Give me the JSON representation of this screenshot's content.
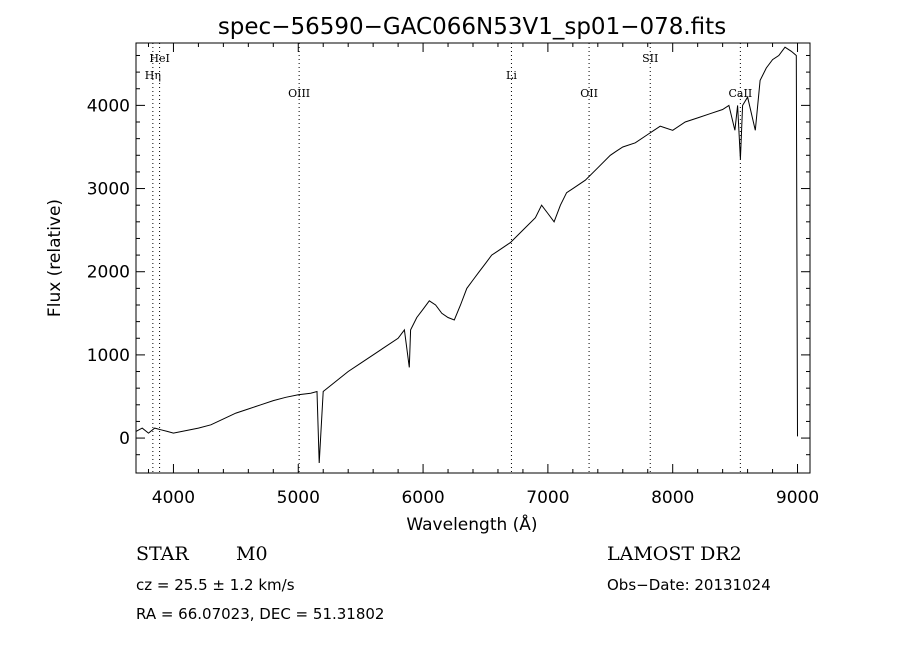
{
  "chart_data": {
    "type": "line",
    "title": "spec−56590−GAC066N53V1_sp01−078.fits",
    "xlabel": "Wavelength (Å)",
    "ylabel": "Flux (relative)",
    "xlim": [
      3700,
      9100
    ],
    "ylim": [
      -420,
      4750
    ],
    "xticks": [
      4000,
      5000,
      6000,
      7000,
      8000,
      9000
    ],
    "yticks": [
      0,
      1000,
      2000,
      3000,
      4000
    ],
    "grid": false,
    "series": [
      {
        "x": [
          3700,
          3750,
          3800,
          3850,
          3900,
          3950,
          4000,
          4100,
          4200,
          4300,
          4400,
          4500,
          4600,
          4700,
          4800,
          4900,
          5000,
          5100,
          5150,
          5168,
          5200,
          5300,
          5400,
          5500,
          5600,
          5700,
          5800,
          5850,
          5890,
          5900,
          5950,
          6000,
          6050,
          6100,
          6150,
          6200,
          6250,
          6300,
          6350,
          6400,
          6450,
          6500,
          6550,
          6600,
          6700,
          6800,
          6900,
          6950,
          7000,
          7050,
          7100,
          7150,
          7200,
          7300,
          7400,
          7500,
          7550,
          7600,
          7700,
          7800,
          7850,
          7900,
          8000,
          8100,
          8200,
          8300,
          8400,
          8450,
          8498,
          8520,
          8542,
          8560,
          8600,
          8662,
          8700,
          8750,
          8800,
          8850,
          8900,
          8950,
          8990,
          9000
        ],
        "y": [
          80,
          120,
          60,
          120,
          100,
          80,
          60,
          90,
          120,
          160,
          230,
          300,
          350,
          400,
          450,
          490,
          520,
          540,
          560,
          -300,
          560,
          680,
          800,
          900,
          1000,
          1100,
          1200,
          1300,
          850,
          1300,
          1450,
          1550,
          1650,
          1600,
          1500,
          1450,
          1420,
          1600,
          1800,
          1900,
          2000,
          2100,
          2200,
          2250,
          2350,
          2500,
          2650,
          2800,
          2700,
          2600,
          2800,
          2950,
          3000,
          3100,
          3250,
          3400,
          3450,
          3500,
          3550,
          3650,
          3700,
          3750,
          3700,
          3800,
          3850,
          3900,
          3950,
          4000,
          3700,
          4000,
          3350,
          4000,
          4100,
          3700,
          4300,
          4450,
          4550,
          4600,
          4700,
          4650,
          4600,
          20
        ]
      }
    ],
    "line_markers": [
      {
        "label": "HeI",
        "x": 3889,
        "row": 1
      },
      {
        "label": "Hη",
        "x": 3835,
        "row": 2
      },
      {
        "label": "OIII",
        "x": 5007,
        "row": 3
      },
      {
        "label": "Li",
        "x": 6708,
        "row": 2
      },
      {
        "label": "OII",
        "x": 7330,
        "row": 3
      },
      {
        "label": "SII",
        "x": 7820,
        "row": 1
      },
      {
        "label": "CaII",
        "x": 8542,
        "row": 3
      }
    ]
  },
  "info": {
    "object_type": "STAR",
    "subclass": "M0",
    "cz_line": "cz = 25.5 ± 1.2 km/s",
    "coords_line": "RA =  66.07023, DEC =  51.31802",
    "survey": "LAMOST DR2",
    "obs_date_line": "Obs−Date: 20131024"
  }
}
